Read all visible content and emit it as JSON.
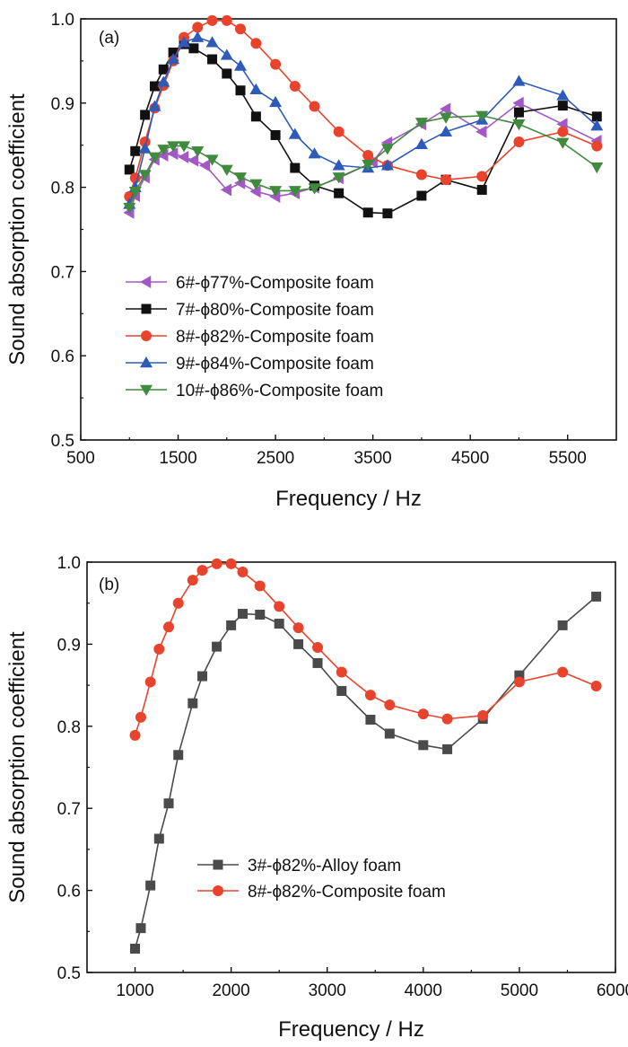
{
  "chart_data": [
    {
      "type": "line",
      "panel_label": "(a)",
      "xlabel": "Frequency / Hz",
      "ylabel": "Sound absorption coefficient",
      "xlim": [
        500,
        6000
      ],
      "ylim": [
        0.5,
        1.0
      ],
      "xticks": [
        500,
        1500,
        2500,
        3500,
        4500,
        5500
      ],
      "yticks": [
        0.5,
        0.6,
        0.7,
        0.8,
        0.9,
        1.0
      ],
      "legend_position": "lower-left",
      "grid": false,
      "series": [
        {
          "name": "6#-ϕ77%-Composite foam",
          "color": "#a259c6",
          "marker": "triangle-left",
          "points": [
            [
              1000,
              0.77
            ],
            [
              1060,
              0.79
            ],
            [
              1160,
              0.812
            ],
            [
              1260,
              0.833
            ],
            [
              1350,
              0.838
            ],
            [
              1450,
              0.84
            ],
            [
              1560,
              0.836
            ],
            [
              1660,
              0.832
            ],
            [
              1780,
              0.826
            ],
            [
              2000,
              0.797
            ],
            [
              2140,
              0.805
            ],
            [
              2300,
              0.795
            ],
            [
              2500,
              0.789
            ],
            [
              2700,
              0.793
            ],
            [
              2900,
              0.8
            ],
            [
              3150,
              0.811
            ],
            [
              3500,
              0.83
            ],
            [
              3650,
              0.853
            ],
            [
              4000,
              0.875
            ],
            [
              4250,
              0.893
            ],
            [
              4620,
              0.866
            ],
            [
              5000,
              0.9
            ],
            [
              5450,
              0.875
            ],
            [
              5800,
              0.855
            ]
          ]
        },
        {
          "name": "7#-ϕ80%-Composite foam",
          "color": "#111111",
          "marker": "square",
          "points": [
            [
              1000,
              0.821
            ],
            [
              1060,
              0.843
            ],
            [
              1160,
              0.886
            ],
            [
              1260,
              0.92
            ],
            [
              1350,
              0.94
            ],
            [
              1450,
              0.96
            ],
            [
              1560,
              0.97
            ],
            [
              1660,
              0.965
            ],
            [
              1850,
              0.952
            ],
            [
              2000,
              0.935
            ],
            [
              2140,
              0.915
            ],
            [
              2300,
              0.884
            ],
            [
              2500,
              0.862
            ],
            [
              2700,
              0.823
            ],
            [
              2900,
              0.802
            ],
            [
              3150,
              0.793
            ],
            [
              3450,
              0.77
            ],
            [
              3650,
              0.769
            ],
            [
              4000,
              0.79
            ],
            [
              4250,
              0.809
            ],
            [
              4620,
              0.797
            ],
            [
              5000,
              0.889
            ],
            [
              5450,
              0.897
            ],
            [
              5800,
              0.884
            ]
          ]
        },
        {
          "name": "8#-ϕ82%-Composite foam",
          "color": "#e8432c",
          "marker": "circle",
          "points": [
            [
              1000,
              0.789
            ],
            [
              1060,
              0.811
            ],
            [
              1160,
              0.854
            ],
            [
              1260,
              0.894
            ],
            [
              1350,
              0.921
            ],
            [
              1450,
              0.95
            ],
            [
              1560,
              0.978
            ],
            [
              1700,
              0.99
            ],
            [
              1850,
              0.998
            ],
            [
              2000,
              0.998
            ],
            [
              2140,
              0.988
            ],
            [
              2300,
              0.971
            ],
            [
              2500,
              0.946
            ],
            [
              2700,
              0.92
            ],
            [
              2900,
              0.896
            ],
            [
              3150,
              0.866
            ],
            [
              3450,
              0.838
            ],
            [
              3650,
              0.826
            ],
            [
              4000,
              0.815
            ],
            [
              4250,
              0.809
            ],
            [
              4620,
              0.813
            ],
            [
              5000,
              0.854
            ],
            [
              5450,
              0.866
            ],
            [
              5800,
              0.849
            ]
          ]
        },
        {
          "name": "9#-ϕ84%-Composite foam",
          "color": "#2e5bb8",
          "marker": "triangle-up",
          "points": [
            [
              1000,
              0.78
            ],
            [
              1060,
              0.8
            ],
            [
              1160,
              0.846
            ],
            [
              1260,
              0.896
            ],
            [
              1350,
              0.925
            ],
            [
              1450,
              0.952
            ],
            [
              1560,
              0.972
            ],
            [
              1700,
              0.978
            ],
            [
              1850,
              0.972
            ],
            [
              2000,
              0.957
            ],
            [
              2140,
              0.944
            ],
            [
              2300,
              0.916
            ],
            [
              2500,
              0.901
            ],
            [
              2700,
              0.863
            ],
            [
              2900,
              0.84
            ],
            [
              3150,
              0.826
            ],
            [
              3450,
              0.823
            ],
            [
              3650,
              0.826
            ],
            [
              4000,
              0.851
            ],
            [
              4250,
              0.866
            ],
            [
              4620,
              0.88
            ],
            [
              5000,
              0.926
            ],
            [
              5450,
              0.909
            ],
            [
              5800,
              0.873
            ]
          ]
        },
        {
          "name": "10#-ϕ86%-Composite foam",
          "color": "#3f8a3c",
          "marker": "triangle-down",
          "points": [
            [
              1000,
              0.776
            ],
            [
              1060,
              0.795
            ],
            [
              1160,
              0.815
            ],
            [
              1260,
              0.836
            ],
            [
              1350,
              0.845
            ],
            [
              1450,
              0.849
            ],
            [
              1560,
              0.849
            ],
            [
              1700,
              0.843
            ],
            [
              1850,
              0.833
            ],
            [
              2000,
              0.821
            ],
            [
              2140,
              0.812
            ],
            [
              2300,
              0.804
            ],
            [
              2500,
              0.796
            ],
            [
              2700,
              0.796
            ],
            [
              2900,
              0.799
            ],
            [
              3150,
              0.812
            ],
            [
              3450,
              0.827
            ],
            [
              3650,
              0.846
            ],
            [
              4000,
              0.877
            ],
            [
              4250,
              0.883
            ],
            [
              4620,
              0.885
            ],
            [
              5000,
              0.875
            ],
            [
              5450,
              0.853
            ],
            [
              5800,
              0.824
            ]
          ]
        }
      ]
    },
    {
      "type": "line",
      "panel_label": "(b)",
      "xlabel": "Frequency / Hz",
      "ylabel": "Sound absorption coefficient",
      "xlim": [
        500,
        6000
      ],
      "ylim": [
        0.5,
        1.0
      ],
      "xticks": [
        1000,
        2000,
        3000,
        4000,
        5000,
        6000
      ],
      "yticks": [
        0.5,
        0.6,
        0.7,
        0.8,
        0.9,
        1.0
      ],
      "legend_position": "lower-center",
      "grid": false,
      "series": [
        {
          "name": "3#-ϕ82%-Alloy foam",
          "color": "#4a4a4a",
          "marker": "square",
          "points": [
            [
              1000,
              0.529
            ],
            [
              1060,
              0.554
            ],
            [
              1160,
              0.606
            ],
            [
              1250,
              0.663
            ],
            [
              1350,
              0.706
            ],
            [
              1450,
              0.765
            ],
            [
              1600,
              0.828
            ],
            [
              1700,
              0.861
            ],
            [
              1850,
              0.897
            ],
            [
              2000,
              0.923
            ],
            [
              2120,
              0.937
            ],
            [
              2300,
              0.936
            ],
            [
              2500,
              0.925
            ],
            [
              2700,
              0.9
            ],
            [
              2900,
              0.877
            ],
            [
              3150,
              0.843
            ],
            [
              3450,
              0.808
            ],
            [
              3650,
              0.791
            ],
            [
              4000,
              0.777
            ],
            [
              4250,
              0.772
            ],
            [
              4620,
              0.809
            ],
            [
              5000,
              0.862
            ],
            [
              5450,
              0.923
            ],
            [
              5800,
              0.958
            ]
          ]
        },
        {
          "name": "8#-ϕ82%-Composite foam",
          "color": "#e8432c",
          "marker": "circle",
          "points": [
            [
              1000,
              0.789
            ],
            [
              1060,
              0.811
            ],
            [
              1160,
              0.854
            ],
            [
              1250,
              0.894
            ],
            [
              1350,
              0.921
            ],
            [
              1450,
              0.95
            ],
            [
              1600,
              0.978
            ],
            [
              1700,
              0.99
            ],
            [
              1850,
              0.998
            ],
            [
              2000,
              0.998
            ],
            [
              2120,
              0.988
            ],
            [
              2300,
              0.971
            ],
            [
              2500,
              0.946
            ],
            [
              2700,
              0.92
            ],
            [
              2900,
              0.896
            ],
            [
              3150,
              0.866
            ],
            [
              3450,
              0.838
            ],
            [
              3650,
              0.826
            ],
            [
              4000,
              0.815
            ],
            [
              4250,
              0.809
            ],
            [
              4620,
              0.813
            ],
            [
              5000,
              0.854
            ],
            [
              5450,
              0.866
            ],
            [
              5800,
              0.849
            ]
          ]
        }
      ]
    }
  ]
}
